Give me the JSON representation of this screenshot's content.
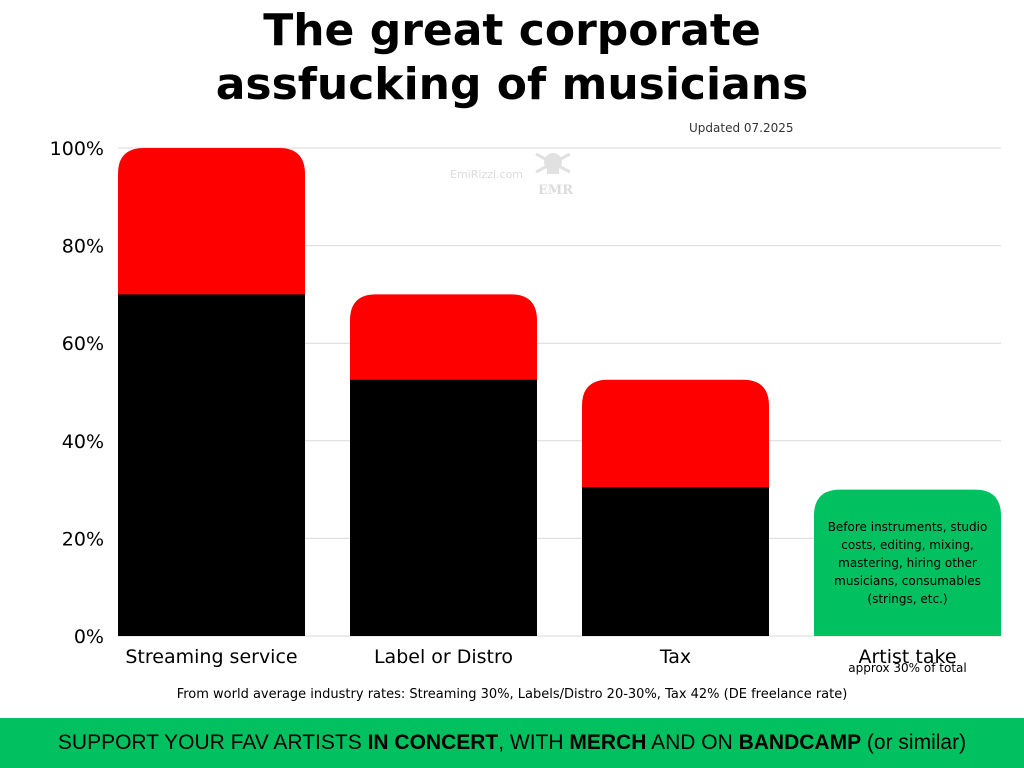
{
  "title_line1": "The great corporate",
  "title_line2": "assfucking of musicians",
  "updated": "Updated 07.2025",
  "watermark_text": "EmiRizzi.com",
  "watermark_logo_text": "EMR",
  "footnote": "From world average industry rates: Streaming 30%, Labels/Distro 20-30%, Tax 42% (DE freelance rate)",
  "banner": {
    "p1": "SUPPORT YOUR FAV ARTISTS ",
    "b1": "IN CONCERT",
    "p2": ", WITH ",
    "b2": "MERCH",
    "p3": " AND ON ",
    "b3": "BANDCAMP",
    "p4": " (or similar)"
  },
  "colors": {
    "remaining": "#000000",
    "taken": "#ff0000",
    "artist": "#00c060",
    "grid": "#d9d9d9"
  },
  "chart_data": {
    "type": "bar",
    "categories": [
      "Streaming service",
      "Label or Distro",
      "Tax",
      "Artist take"
    ],
    "series": [
      {
        "values": [
          70,
          52.5,
          30.5,
          30
        ]
      },
      {
        "values": [
          30,
          17.5,
          22,
          0
        ]
      }
    ],
    "yticks": [
      "0%",
      "20%",
      "40%",
      "60%",
      "80%",
      "100%"
    ],
    "ylim": [
      0,
      100
    ],
    "grid": true,
    "annotations": {
      "artist_note": [
        "Before instruments, studio",
        "costs, editing, mixing,",
        "mastering, hiring other",
        "musicians, consumables",
        "(strings, etc.)"
      ],
      "artist_sub": "approx 30% of total"
    }
  }
}
